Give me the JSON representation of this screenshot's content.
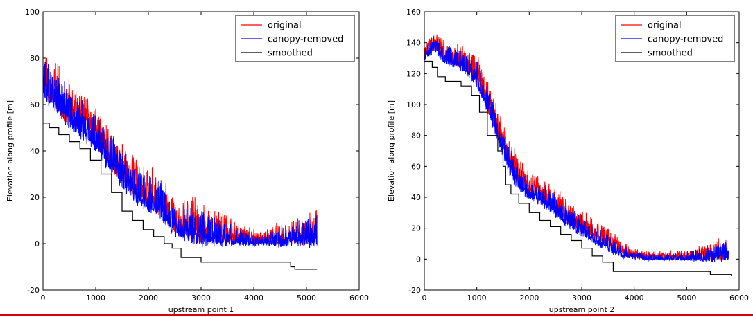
{
  "figure": {
    "separator_color": "#d80000"
  },
  "chart_data": [
    {
      "type": "line",
      "title": "",
      "xlabel": "upstream point 1",
      "ylabel": "Elevation along profile [m]",
      "xlim": [
        0,
        6000
      ],
      "ylim": [
        -20,
        100
      ],
      "xticks": [
        0,
        1000,
        2000,
        3000,
        4000,
        5000,
        6000
      ],
      "yticks": [
        -20,
        0,
        20,
        40,
        60,
        80,
        100
      ],
      "legend": {
        "placement": "top-right",
        "entries": [
          "original",
          "canopy-removed",
          "smoothed"
        ]
      },
      "series": [
        {
          "name": "original",
          "color": "#ff0000",
          "style": "noisy",
          "x": [
            0,
            200,
            400,
            600,
            800,
            1000,
            1200,
            1400,
            1600,
            1800,
            2000,
            2200,
            2400,
            2600,
            2800,
            3000,
            3200,
            3400,
            3600,
            3800,
            4000,
            4200,
            4400,
            4600,
            4800,
            5000,
            5200
          ],
          "base": [
            68,
            62,
            57,
            53,
            49,
            45,
            38,
            32,
            26,
            22,
            19,
            16,
            10,
            6,
            5,
            4,
            3,
            3,
            2,
            1,
            1,
            1,
            1,
            1,
            2,
            2,
            2
          ],
          "amp": [
            16,
            18,
            18,
            17,
            16,
            15,
            16,
            16,
            16,
            16,
            15,
            15,
            14,
            12,
            18,
            15,
            13,
            12,
            9,
            7,
            6,
            5,
            8,
            9,
            10,
            12,
            14
          ]
        },
        {
          "name": "canopy-removed",
          "color": "#0000ff",
          "style": "noisy",
          "x": [
            0,
            200,
            400,
            600,
            800,
            1000,
            1200,
            1400,
            1600,
            1800,
            2000,
            2200,
            2400,
            2600,
            2800,
            3000,
            3200,
            3400,
            3600,
            3800,
            4000,
            4200,
            4400,
            4600,
            4800,
            5000,
            5200
          ],
          "base": [
            66,
            60,
            55,
            51,
            47,
            43,
            36,
            30,
            24,
            20,
            17,
            14,
            8,
            4,
            3,
            2,
            1,
            1,
            1,
            0,
            0,
            0,
            0,
            0,
            1,
            1,
            1
          ],
          "amp": [
            16,
            17,
            17,
            16,
            15,
            14,
            15,
            15,
            15,
            15,
            14,
            14,
            13,
            11,
            16,
            14,
            12,
            11,
            8,
            6,
            5,
            4,
            7,
            8,
            9,
            11,
            13
          ]
        },
        {
          "name": "smoothed",
          "color": "#000000",
          "style": "step",
          "x": [
            0,
            120,
            300,
            500,
            700,
            900,
            1100,
            1300,
            1500,
            1700,
            1900,
            2100,
            2300,
            2450,
            2620,
            3000,
            3400,
            4700,
            4780,
            5200
          ],
          "y": [
            52,
            50,
            47,
            44,
            41,
            36,
            30,
            22,
            14,
            10,
            6,
            3,
            0,
            -2,
            -6,
            -8,
            -8,
            -10,
            -11,
            -11
          ]
        }
      ]
    },
    {
      "type": "line",
      "title": "",
      "xlabel": "upstream point 2",
      "ylabel": "Elevation along profile [m]",
      "xlim": [
        0,
        6000
      ],
      "ylim": [
        -20,
        160
      ],
      "xticks": [
        0,
        1000,
        2000,
        3000,
        4000,
        5000,
        6000
      ],
      "yticks": [
        -20,
        0,
        20,
        40,
        60,
        80,
        100,
        120,
        140,
        160
      ],
      "legend": {
        "placement": "top-right",
        "entries": [
          "original",
          "canopy-removed",
          "smoothed"
        ]
      },
      "series": [
        {
          "name": "original",
          "color": "#ff0000",
          "style": "noisy",
          "x": [
            0,
            200,
            400,
            600,
            800,
            1000,
            1200,
            1400,
            1600,
            1800,
            2000,
            2200,
            2400,
            2600,
            2800,
            3000,
            3200,
            3400,
            3600,
            3800,
            4000,
            4200,
            4400,
            4600,
            4800,
            5000,
            5200,
            5400,
            5600,
            5800
          ],
          "base": [
            132,
            138,
            130,
            128,
            124,
            118,
            100,
            82,
            62,
            50,
            44,
            40,
            36,
            30,
            24,
            20,
            16,
            12,
            8,
            4,
            2,
            1,
            1,
            1,
            1,
            1,
            1,
            1,
            2,
            2
          ],
          "amp": [
            10,
            12,
            12,
            12,
            14,
            16,
            18,
            18,
            18,
            16,
            14,
            14,
            14,
            14,
            14,
            14,
            12,
            12,
            10,
            8,
            6,
            5,
            5,
            5,
            5,
            6,
            8,
            10,
            12,
            14
          ]
        },
        {
          "name": "canopy-removed",
          "color": "#0000ff",
          "style": "noisy",
          "x": [
            0,
            200,
            400,
            600,
            800,
            1000,
            1200,
            1400,
            1600,
            1800,
            2000,
            2200,
            2400,
            2600,
            2800,
            3000,
            3200,
            3400,
            3600,
            3800,
            4000,
            4200,
            4400,
            4600,
            4800,
            5000,
            5200,
            5400,
            5600,
            5800
          ],
          "base": [
            130,
            136,
            128,
            126,
            122,
            115,
            97,
            79,
            59,
            47,
            41,
            37,
            33,
            27,
            21,
            17,
            13,
            9,
            5,
            2,
            1,
            0,
            0,
            0,
            0,
            0,
            0,
            0,
            1,
            1
          ],
          "amp": [
            10,
            11,
            11,
            11,
            13,
            15,
            17,
            17,
            17,
            15,
            13,
            13,
            13,
            13,
            13,
            13,
            11,
            11,
            9,
            7,
            5,
            4,
            4,
            4,
            4,
            5,
            7,
            9,
            11,
            13
          ]
        },
        {
          "name": "smoothed",
          "color": "#000000",
          "style": "step",
          "x": [
            0,
            150,
            250,
            400,
            700,
            900,
            1050,
            1200,
            1400,
            1500,
            1550,
            1650,
            1800,
            2000,
            2200,
            2400,
            2600,
            2800,
            3000,
            3200,
            3400,
            3600,
            5350,
            5450,
            5850
          ],
          "y": [
            128,
            124,
            118,
            115,
            112,
            106,
            95,
            80,
            70,
            60,
            48,
            42,
            36,
            30,
            25,
            21,
            16,
            12,
            7,
            2,
            -2,
            -8,
            -8,
            -10,
            -11
          ]
        }
      ]
    }
  ]
}
